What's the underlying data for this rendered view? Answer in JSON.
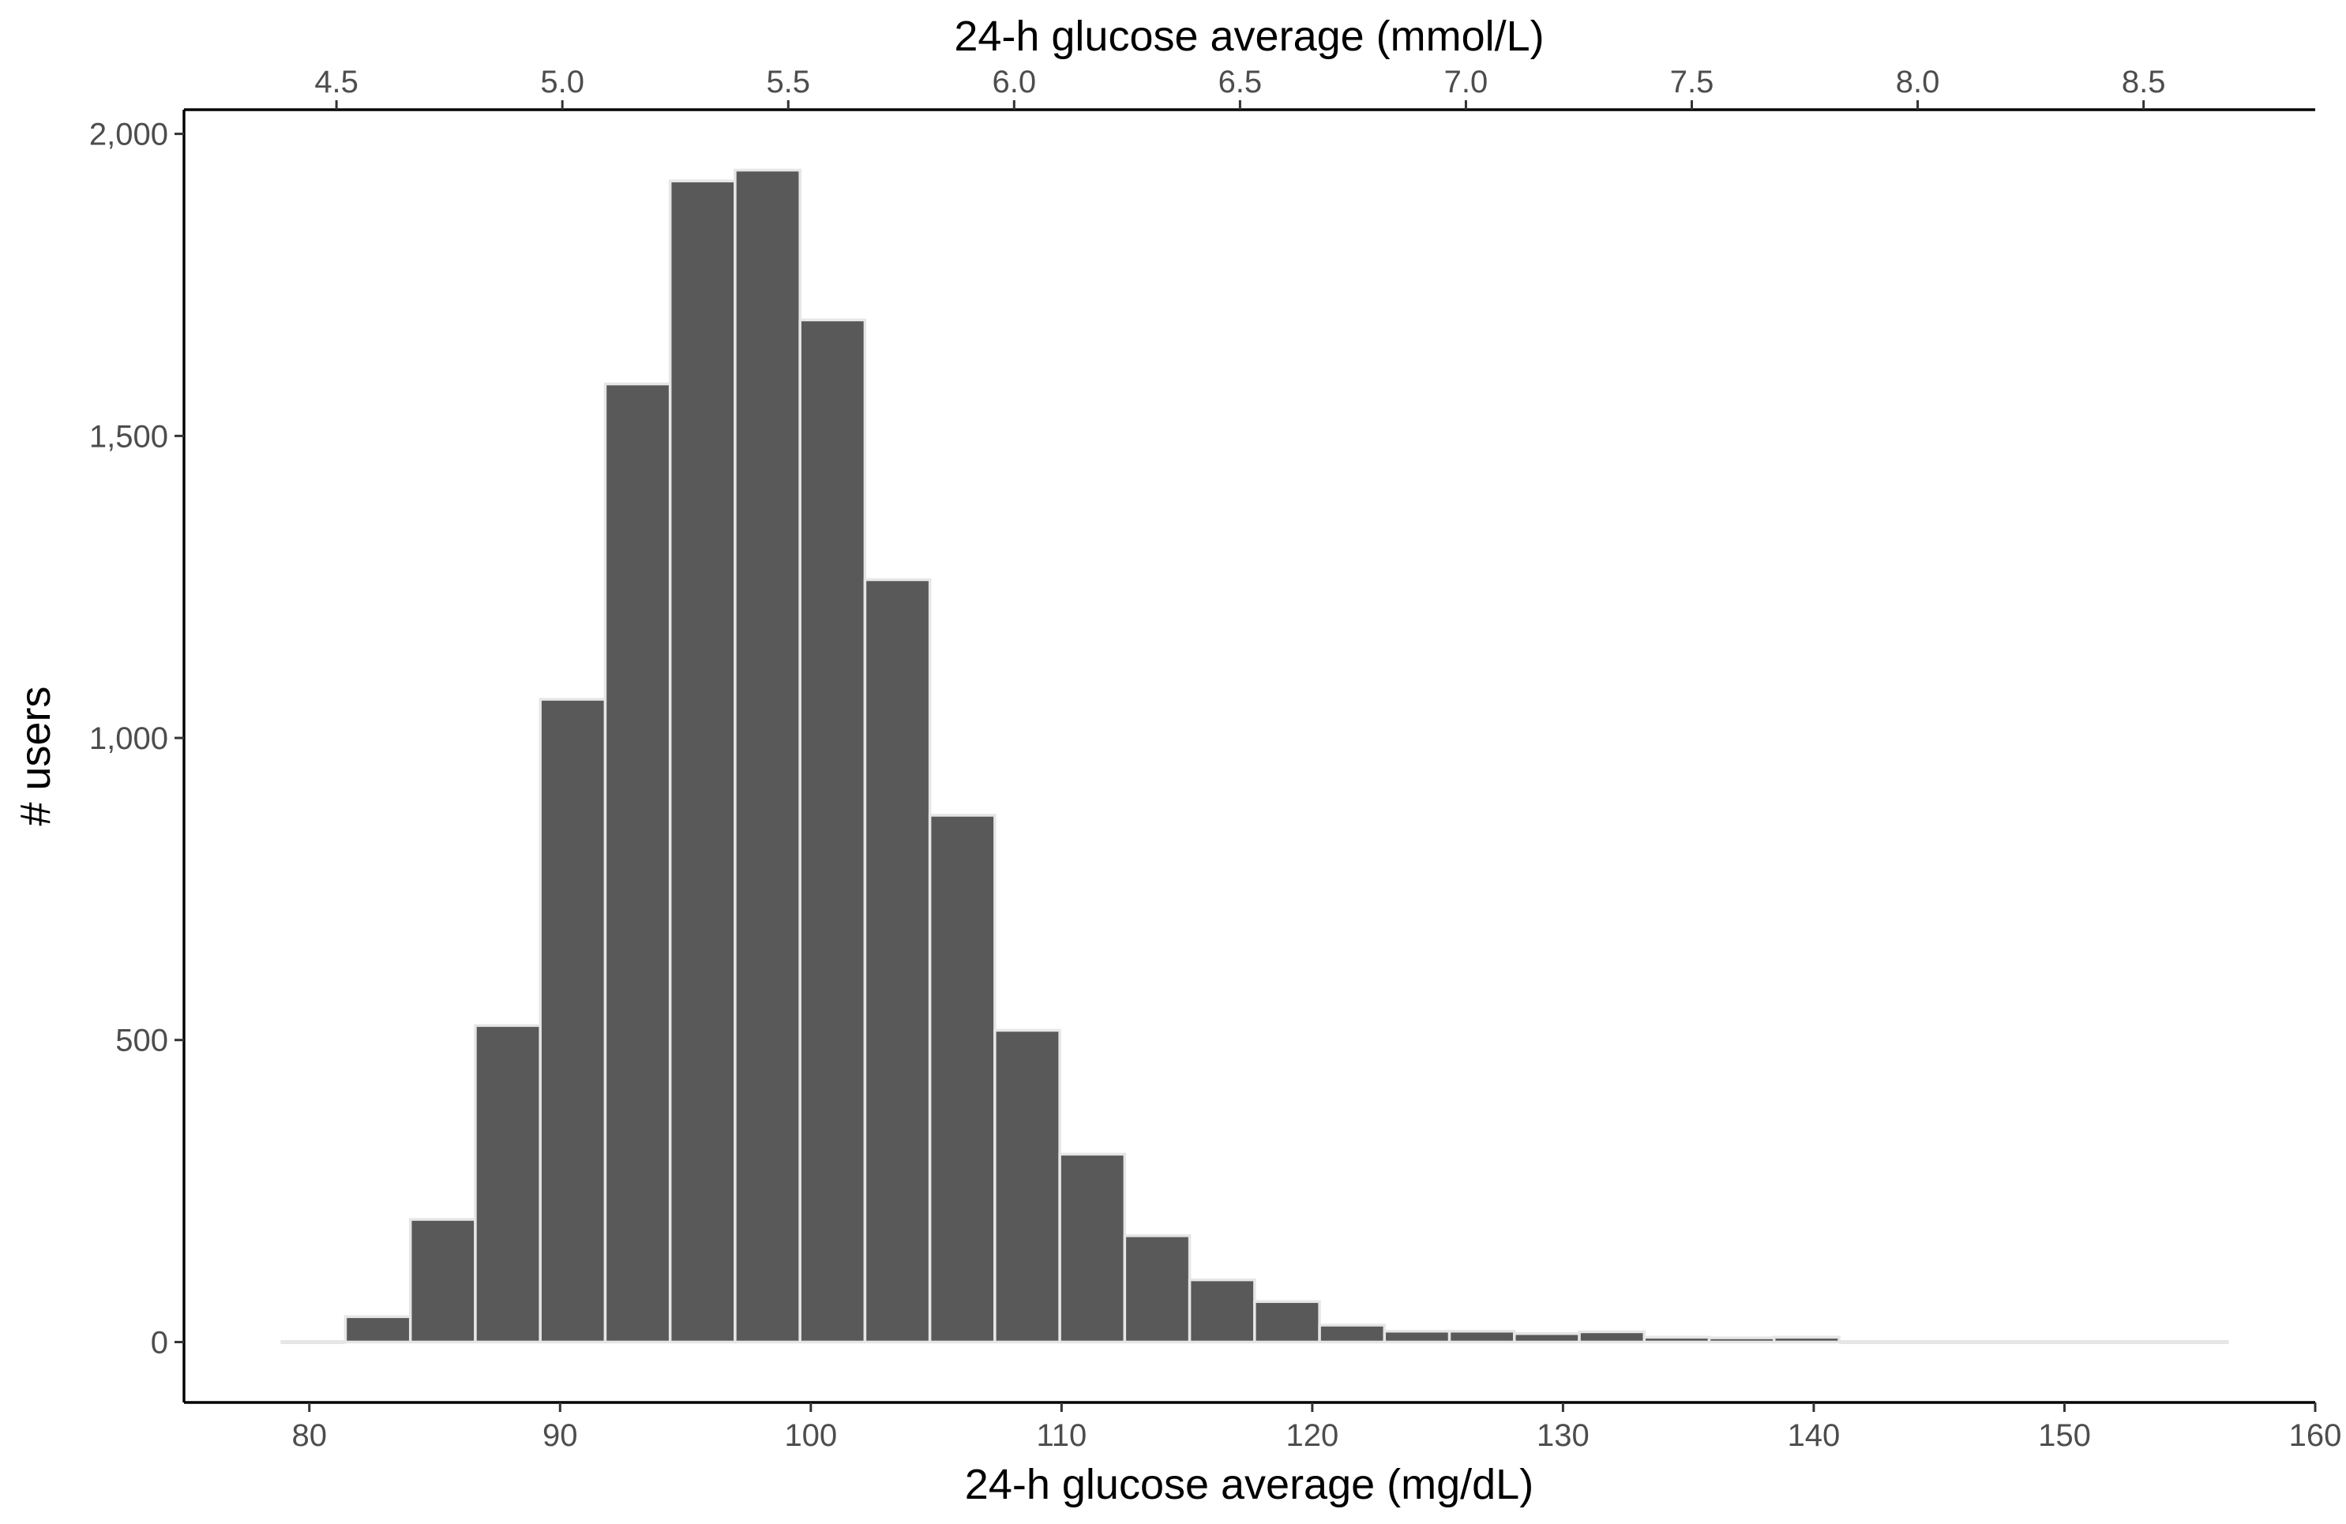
{
  "chart_data": {
    "type": "bar",
    "subtype": "histogram",
    "xlabel": "24-h glucose average (mg/dL)",
    "xlabel_secondary": "24-h glucose average (mmol/L)",
    "ylabel": "# users",
    "xlim": [
      75,
      160
    ],
    "ylim": [
      -100,
      2040
    ],
    "x_ticks": [
      "80",
      "90",
      "100",
      "110",
      "120",
      "130",
      "140",
      "150",
      "160"
    ],
    "x_tick_values": [
      80,
      90,
      100,
      110,
      120,
      130,
      140,
      150,
      160
    ],
    "x_secondary_ticks": [
      "4.5",
      "5.0",
      "5.5",
      "6.0",
      "6.5",
      "7.0",
      "7.5",
      "8.0",
      "8.5"
    ],
    "x_secondary_tick_values": [
      4.5,
      5.0,
      5.5,
      6.0,
      6.5,
      7.0,
      7.5,
      8.0,
      8.5
    ],
    "mgdl_per_mmol": 18.0182,
    "y_ticks": [
      "0",
      "500",
      "1,000",
      "1,500",
      "2,000"
    ],
    "y_tick_values": [
      0,
      500,
      1000,
      1500,
      2000
    ],
    "bin_width": 2.59,
    "bins": [
      {
        "x0": 78.85,
        "value": 4
      },
      {
        "x0": 81.44,
        "value": 42
      },
      {
        "x0": 84.03,
        "value": 203
      },
      {
        "x0": 86.62,
        "value": 524
      },
      {
        "x0": 89.21,
        "value": 1064
      },
      {
        "x0": 91.8,
        "value": 1586
      },
      {
        "x0": 94.39,
        "value": 1922
      },
      {
        "x0": 96.98,
        "value": 1940
      },
      {
        "x0": 99.57,
        "value": 1692
      },
      {
        "x0": 102.16,
        "value": 1262
      },
      {
        "x0": 104.75,
        "value": 872
      },
      {
        "x0": 107.34,
        "value": 516
      },
      {
        "x0": 109.93,
        "value": 311
      },
      {
        "x0": 112.52,
        "value": 176
      },
      {
        "x0": 115.11,
        "value": 103
      },
      {
        "x0": 117.7,
        "value": 67
      },
      {
        "x0": 120.29,
        "value": 28
      },
      {
        "x0": 122.88,
        "value": 18
      },
      {
        "x0": 125.47,
        "value": 18
      },
      {
        "x0": 128.06,
        "value": 14
      },
      {
        "x0": 130.65,
        "value": 17
      },
      {
        "x0": 133.24,
        "value": 8
      },
      {
        "x0": 135.83,
        "value": 7
      },
      {
        "x0": 138.42,
        "value": 8
      },
      {
        "x0": 141.01,
        "value": 4
      },
      {
        "x0": 143.6,
        "value": 2
      },
      {
        "x0": 146.19,
        "value": 2
      },
      {
        "x0": 148.78,
        "value": 3
      },
      {
        "x0": 151.37,
        "value": 1
      },
      {
        "x0": 153.96,
        "value": 2
      }
    ],
    "colors": {
      "bar_fill": "#595959",
      "bar_outline": "#e6e6e6",
      "axis": "#000000",
      "tick_label": "#4d4d4d"
    },
    "grid": false
  }
}
